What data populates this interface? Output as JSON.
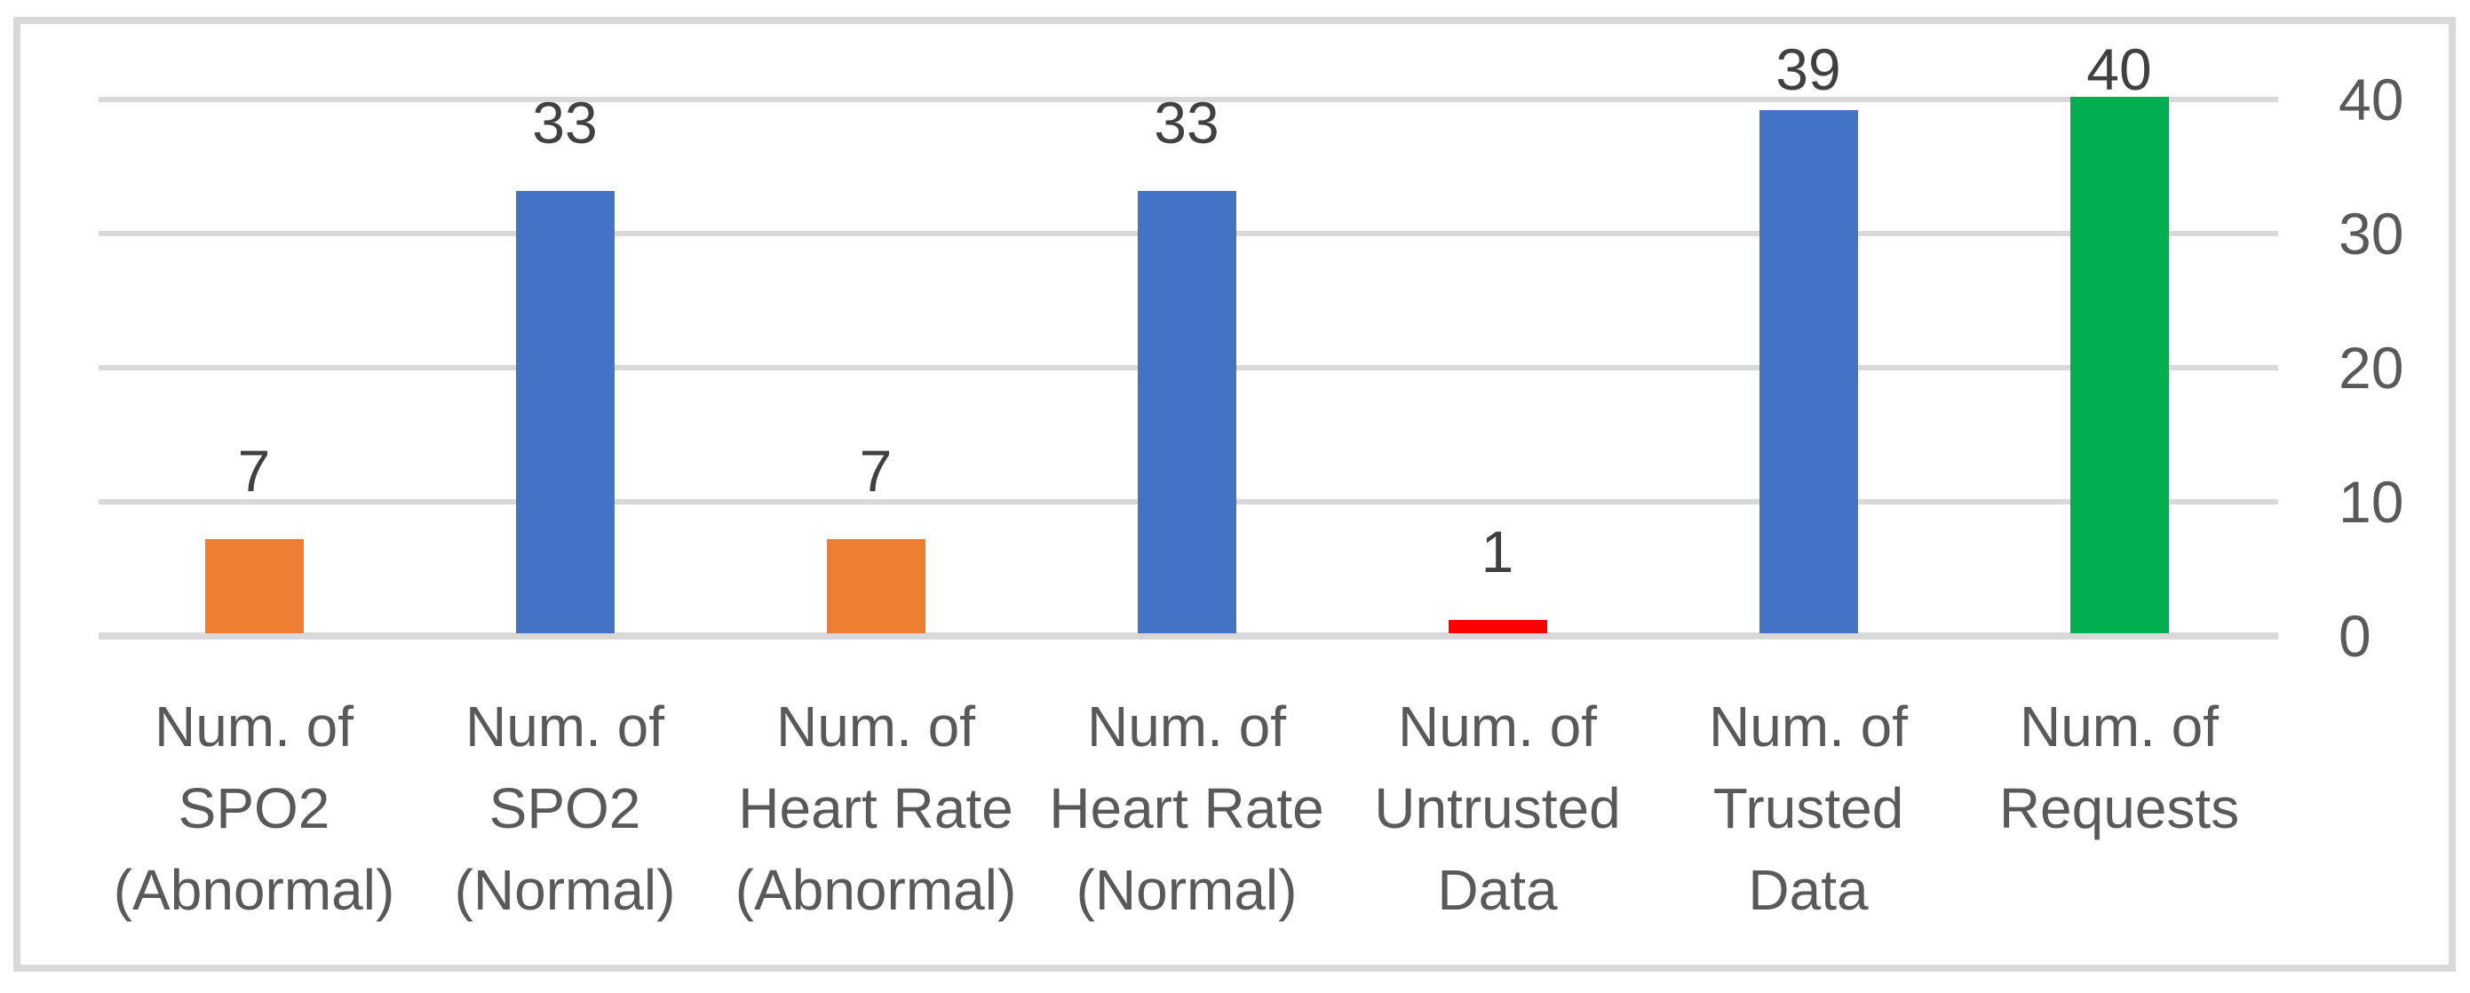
{
  "chart_data": {
    "type": "bar",
    "categories": [
      "Num. of SPO2 (Abnormal)",
      "Num. of SPO2 (Normal)",
      "Num. of Heart Rate (Abnormal)",
      "Num. of Heart Rate (Normal)",
      "Num. of Untrusted Data",
      "Num. of Trusted Data",
      "Num. of Requests"
    ],
    "values": [
      7,
      33,
      7,
      33,
      1,
      39,
      40
    ],
    "data_labels": [
      "7",
      "33",
      "7",
      "33",
      "1",
      "39",
      "40"
    ],
    "bar_colors": [
      "#ED7D31",
      "#4472C4",
      "#ED7D31",
      "#4472C4",
      "#FF0000",
      "#4472C4",
      "#00B050"
    ],
    "y_ticks": [
      0,
      10,
      20,
      30,
      40
    ],
    "y_tick_labels": [
      "0",
      "10",
      "20",
      "30",
      "40"
    ],
    "ylim": [
      0,
      40
    ],
    "y_axis_side": "right",
    "grid": "horizontal",
    "legend": "none",
    "colors": {
      "gridline": "#D9D9D9",
      "frame_border": "#D9D9D9",
      "axis_text": "#595959",
      "category_text": "#595959",
      "data_label_text": "#404040",
      "background": "#FFFFFF"
    }
  }
}
